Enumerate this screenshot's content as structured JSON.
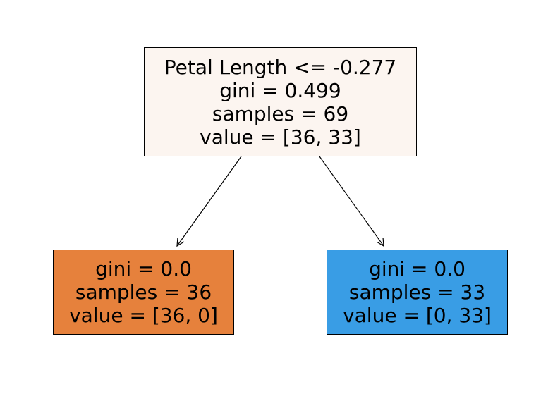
{
  "tree": {
    "root": {
      "split": "Petal Length <= -0.277",
      "gini": "gini = 0.499",
      "samples": "samples = 69",
      "value": "value = [36, 33]",
      "fill": "#fcf5f0"
    },
    "left": {
      "gini": "gini = 0.0",
      "samples": "samples = 36",
      "value": "value = [36, 0]",
      "fill": "#e6813c"
    },
    "right": {
      "gini": "gini = 0.0",
      "samples": "samples = 33",
      "value": "value = [0, 33]",
      "fill": "#399de5"
    }
  }
}
